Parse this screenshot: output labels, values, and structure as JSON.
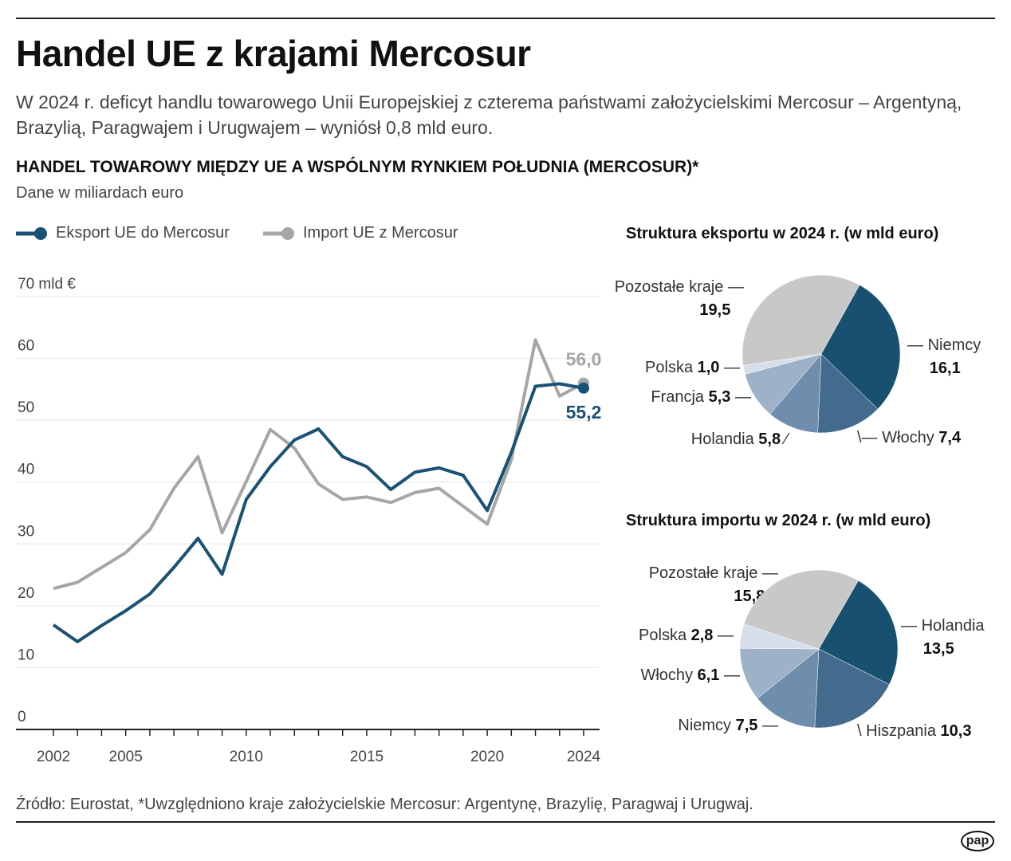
{
  "title": "Handel UE z krajami Mercosur",
  "subtitle": "W 2024 r. deficyt handlu towarowego Unii Europejskiej z czterema państwami założycielskimi Mercosur – Argentyną, Brazylią, Paragwajem i Urugwajem – wyniósł 0,8 mld euro.",
  "chart_heading": "HANDEL TOWAROWY MIĘDZY UE A WSPÓLNYM RYNKIEM POŁUDNIA (MERCOSUR)*",
  "unit_note": "Dane w miliardach euro",
  "source": "Źródło: Eurostat, *Uwzględniono kraje założycielskie Mercosur: Argentynę, Brazylię, Paragwaj i Urugwaj.",
  "logo": "pap",
  "chart_data": [
    {
      "type": "line",
      "ylim": [
        0,
        70
      ],
      "yticks": [
        "0",
        "10",
        "20",
        "30",
        "40",
        "50",
        "60",
        "70 mld €"
      ],
      "yticks_values": [
        0,
        10,
        20,
        30,
        40,
        50,
        60,
        70
      ],
      "xticks": [
        "2002",
        "2005",
        "2010",
        "2015",
        "2020",
        "2024"
      ],
      "xlim": [
        2002,
        2024
      ],
      "grid": true,
      "legend": "top-left",
      "x": [
        2002,
        2003,
        2004,
        2005,
        2006,
        2007,
        2008,
        2009,
        2010,
        2011,
        2012,
        2013,
        2014,
        2015,
        2016,
        2017,
        2018,
        2019,
        2020,
        2021,
        2022,
        2023,
        2024
      ],
      "series": [
        {
          "name": "Eksport UE do Mercosur",
          "color": "#1a5276",
          "end_label": "55,2",
          "values": [
            16.9,
            14.2,
            16.8,
            19.2,
            21.9,
            26.2,
            30.9,
            25.1,
            37.2,
            42.5,
            46.8,
            48.6,
            44.1,
            42.5,
            38.8,
            41.6,
            42.3,
            41.1,
            35.4,
            44.8,
            55.5,
            55.9,
            55.2
          ]
        },
        {
          "name": "Import UE z Mercosur",
          "color": "#a6a6a6",
          "end_label": "56,0",
          "values": [
            22.8,
            23.8,
            26.2,
            28.6,
            32.3,
            39.0,
            44.1,
            31.8,
            40.1,
            48.5,
            45.5,
            39.7,
            37.2,
            37.6,
            36.7,
            38.3,
            39.0,
            36.1,
            33.2,
            43.6,
            63.0,
            53.9,
            56.0
          ]
        }
      ]
    },
    {
      "type": "pie",
      "title": "Struktura eksportu w 2024 r. (w mld euro)",
      "slices": [
        {
          "label": "Niemcy",
          "value": 16.1,
          "value_label": "16,1",
          "color": "#18506f"
        },
        {
          "label": "Włochy",
          "value": 7.4,
          "value_label": "7,4",
          "color": "#436b8d"
        },
        {
          "label": "Holandia",
          "value": 5.8,
          "value_label": "5,8",
          "color": "#6f8dac"
        },
        {
          "label": "Francja",
          "value": 5.3,
          "value_label": "5,3",
          "color": "#9db2c9"
        },
        {
          "label": "Polska",
          "value": 1.0,
          "value_label": "1,0",
          "color": "#d5dee9"
        },
        {
          "label": "Pozostałe kraje",
          "value": 19.5,
          "value_label": "19,5",
          "color": "#c8c8c8"
        }
      ]
    },
    {
      "type": "pie",
      "title": "Struktura importu w 2024 r. (w mld euro)",
      "slices": [
        {
          "label": "Holandia",
          "value": 13.5,
          "value_label": "13,5",
          "color": "#18506f"
        },
        {
          "label": "Hiszpania",
          "value": 10.3,
          "value_label": "10,3",
          "color": "#436b8d"
        },
        {
          "label": "Niemcy",
          "value": 7.5,
          "value_label": "7,5",
          "color": "#6f8dac"
        },
        {
          "label": "Włochy",
          "value": 6.1,
          "value_label": "6,1",
          "color": "#9db2c9"
        },
        {
          "label": "Polska",
          "value": 2.8,
          "value_label": "2,8",
          "color": "#d5dee9"
        },
        {
          "label": "Pozostałe kraje",
          "value": 15.8,
          "value_label": "15,8",
          "color": "#c8c8c8"
        }
      ]
    }
  ]
}
